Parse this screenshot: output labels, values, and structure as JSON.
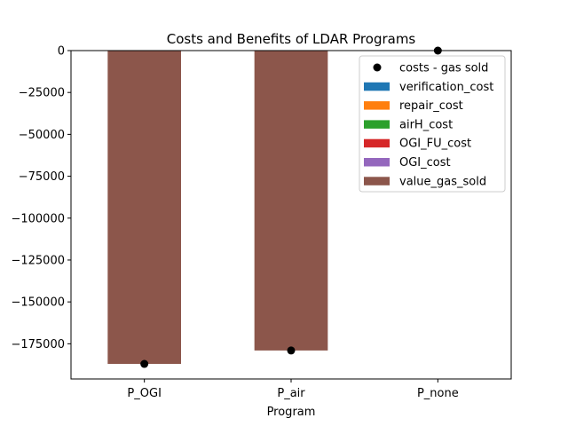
{
  "chart_data": {
    "type": "bar",
    "title": "Costs and Benefits of LDAR Programs",
    "xlabel": "Program",
    "ylabel": "",
    "categories": [
      "P_OGI",
      "P_air",
      "P_none"
    ],
    "ylim": [
      -196000,
      0
    ],
    "yticks": [
      0,
      -25000,
      -50000,
      -75000,
      -100000,
      -125000,
      -150000,
      -175000
    ],
    "ytick_labels": [
      "0",
      "−25000",
      "−50000",
      "−75000",
      "−100000",
      "−125000",
      "−150000",
      "−175000"
    ],
    "stacked": true,
    "series": [
      {
        "name": "verification_cost",
        "color": "#1f77b4",
        "values": [
          0,
          0,
          0
        ]
      },
      {
        "name": "repair_cost",
        "color": "#ff7f0e",
        "values": [
          0,
          0,
          0
        ]
      },
      {
        "name": "airH_cost",
        "color": "#2ca02c",
        "values": [
          0,
          0,
          0
        ]
      },
      {
        "name": "OGI_FU_cost",
        "color": "#d62728",
        "values": [
          0,
          0,
          0
        ]
      },
      {
        "name": "OGI_cost",
        "color": "#9467bd",
        "values": [
          0,
          0,
          0
        ]
      },
      {
        "name": "value_gas_sold",
        "color": "#8c564b",
        "values": [
          -187000,
          -179000,
          0
        ]
      }
    ],
    "points": {
      "name": "costs - gas sold",
      "color": "#000000",
      "marker": "circle",
      "values": [
        -187000,
        -179000,
        0
      ]
    },
    "legend_placement": "top-right",
    "legend_order": [
      "costs - gas sold",
      "verification_cost",
      "repair_cost",
      "airH_cost",
      "OGI_FU_cost",
      "OGI_cost",
      "value_gas_sold"
    ],
    "grid": false
  }
}
